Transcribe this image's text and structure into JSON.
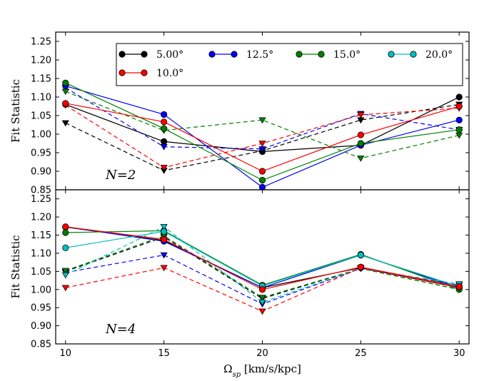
{
  "chart_data": {
    "type": "line",
    "x": [
      10,
      15,
      20,
      25,
      30
    ],
    "xlabel_main": "Ω",
    "xlabel_sub": "sp",
    "xlabel_units": " [km/s/kpc]",
    "xlim": [
      9.5,
      30.5
    ],
    "x_ticks": [
      10,
      15,
      20,
      25,
      30
    ],
    "ylim": [
      0.85,
      1.275
    ],
    "y_ticks": [
      0.85,
      0.9,
      0.95,
      1.0,
      1.05,
      1.1,
      1.15,
      1.2,
      1.25
    ],
    "legend": [
      {
        "label": "5.00°",
        "color": "#000000"
      },
      {
        "label": "12.5°",
        "color": "#0000ff"
      },
      {
        "label": "15.0°",
        "color": "#008000"
      },
      {
        "label": "20.0°",
        "color": "#00bfbf"
      },
      {
        "label": "10.0°",
        "color": "#ff0000"
      }
    ],
    "legend_position": "top-right",
    "panels": [
      {
        "annotation": "N=2",
        "ylabel": "Fit Statistic",
        "series": [
          {
            "name": "5.00°",
            "color": "#000000",
            "solid": [
              1.08,
              0.98,
              0.953,
              0.97,
              1.1
            ],
            "dashed": [
              1.03,
              0.902,
              0.955,
              1.038,
              1.08
            ]
          },
          {
            "name": "12.5°",
            "color": "#0000ff",
            "solid": [
              1.13,
              1.053,
              0.857,
              0.97,
              1.038
            ],
            "dashed": [
              1.125,
              0.966,
              0.96,
              1.055,
              1.012
            ]
          },
          {
            "name": "15.0°",
            "color": "#008000",
            "solid": [
              1.138,
              1.015,
              0.876,
              0.975,
              1.012
            ],
            "dashed": [
              1.115,
              1.01,
              1.038,
              0.935,
              0.997
            ]
          },
          {
            "name": "10.0°",
            "color": "#ff0000",
            "solid": [
              1.083,
              1.033,
              0.9,
              0.998,
              1.075
            ],
            "dashed": [
              1.078,
              0.91,
              0.975,
              1.052,
              1.07
            ]
          }
        ]
      },
      {
        "annotation": "N=4",
        "ylabel": "Fit Statistic",
        "series": [
          {
            "name": "5.00°",
            "color": "#000000",
            "solid": [
              1.172,
              1.135,
              1.005,
              1.06,
              1.005
            ],
            "dashed": [
              1.05,
              1.145,
              0.975,
              1.058,
              1.0
            ]
          },
          {
            "name": "12.5°",
            "color": "#0000ff",
            "solid": [
              1.173,
              1.133,
              1.005,
              1.095,
              1.005
            ],
            "dashed": [
              1.047,
              1.095,
              0.96,
              1.058,
              1.012
            ]
          },
          {
            "name": "15.0°",
            "color": "#008000",
            "solid": [
              1.157,
              1.162,
              1.012,
              1.097,
              1.0
            ],
            "dashed": [
              1.052,
              1.148,
              0.978,
              1.058,
              1.0
            ]
          },
          {
            "name": "20.0°",
            "color": "#00bfbf",
            "solid": [
              1.115,
              1.16,
              1.01,
              1.095,
              1.008
            ],
            "dashed": [
              1.04,
              1.173,
              0.965,
              1.058,
              1.015
            ]
          },
          {
            "name": "10.0°",
            "color": "#ff0000",
            "solid": [
              1.173,
              1.138,
              1.0,
              1.062,
              1.008
            ],
            "dashed": [
              1.005,
              1.06,
              0.94,
              1.06,
              1.005
            ]
          }
        ]
      }
    ]
  }
}
